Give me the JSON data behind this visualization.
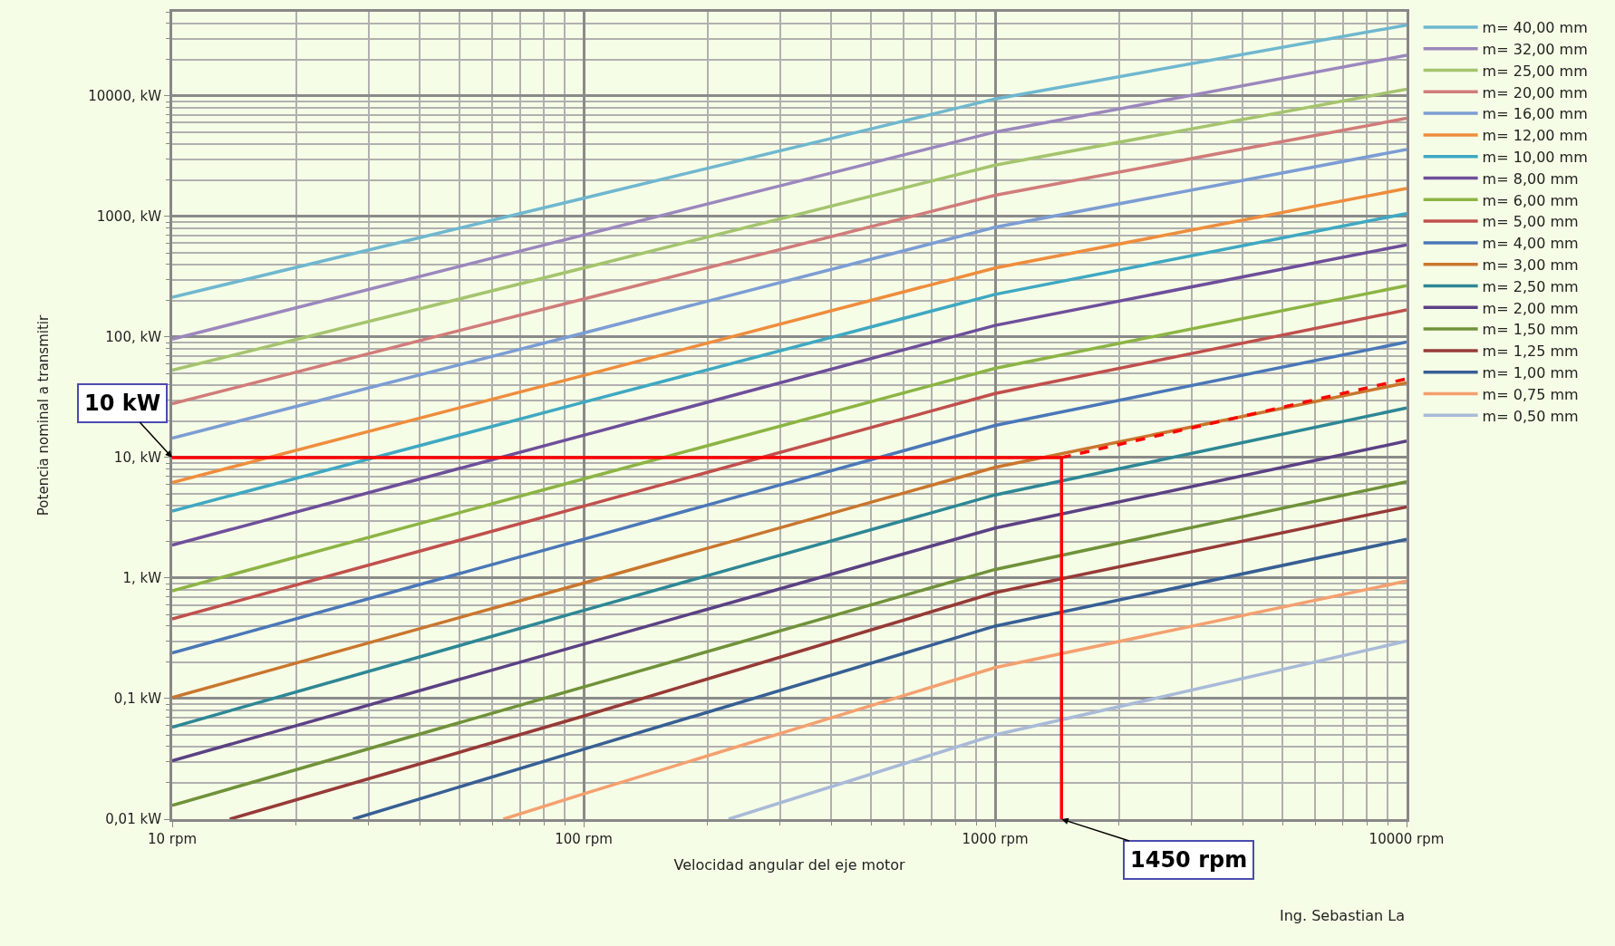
{
  "chart_data": {
    "type": "line",
    "xlabel": "Velocidad angular del eje motor",
    "ylabel": "Potencia nominal a transmitir",
    "log": "xy",
    "grid": true,
    "legend": "top right",
    "line_style": "solid",
    "xlim": [
      10,
      10000
    ],
    "xticks": [
      {
        "value": 10,
        "label": "10 rpm"
      },
      {
        "value": 100,
        "label": "100 rpm"
      },
      {
        "value": 1000,
        "label": "1000 rpm"
      },
      {
        "value": 10000,
        "label": "10000 rpm"
      }
    ],
    "ylim": [
      0.01,
      50000
    ],
    "yticks": [
      {
        "value": 0.01,
        "label": "0,01 kW"
      },
      {
        "value": 0.1,
        "label": "0,1 kW"
      },
      {
        "value": 1,
        "label": "1, kW"
      },
      {
        "value": 10,
        "label": "10, kW"
      },
      {
        "value": 100,
        "label": "100, kW"
      },
      {
        "value": 1000,
        "label": "1000, kW"
      },
      {
        "value": 10000,
        "label": "10000, kW"
      }
    ],
    "series": [
      {
        "name": "m= 40,00 mm",
        "color": "#6fb7cf",
        "x": [
          10,
          100,
          1000,
          10000
        ],
        "values": [
          214,
          1420,
          9460,
          38800
        ]
      },
      {
        "name": "m= 32,00 mm",
        "color": "#9b87bd",
        "x": [
          10,
          100,
          1000,
          10000
        ],
        "values": [
          96,
          703,
          5030,
          21800
        ]
      },
      {
        "name": "m= 25,00 mm",
        "color": "#a5c46e",
        "x": [
          10,
          100,
          1000,
          10000
        ],
        "values": [
          53,
          374,
          2670,
          11400
        ]
      },
      {
        "name": "m= 20,00 mm",
        "color": "#d07c7a",
        "x": [
          10,
          100,
          1000,
          10000
        ],
        "values": [
          28,
          207,
          1500,
          6530
        ]
      },
      {
        "name": "m= 16,00 mm",
        "color": "#7c9dd3",
        "x": [
          10,
          100,
          1000,
          10000
        ],
        "values": [
          14.5,
          108,
          815,
          3600
        ]
      },
      {
        "name": "m= 12,00 mm",
        "color": "#ee8d3d",
        "x": [
          10,
          100,
          1000,
          10000
        ],
        "values": [
          6.2,
          48,
          374,
          1710
        ]
      },
      {
        "name": "m= 10,00 mm",
        "color": "#3fa8c2",
        "x": [
          10,
          100,
          1000,
          10000
        ],
        "values": [
          3.6,
          28.8,
          226,
          1060
        ]
      },
      {
        "name": "m= 8,00 mm",
        "color": "#6e4f9a",
        "x": [
          10,
          100,
          1000,
          10000
        ],
        "values": [
          1.88,
          15.3,
          125,
          583
        ]
      },
      {
        "name": "m= 6,00 mm",
        "color": "#8cb444",
        "x": [
          10,
          100,
          1000,
          10000
        ],
        "values": [
          0.785,
          6.65,
          55,
          267
        ]
      },
      {
        "name": "m= 5,00 mm",
        "color": "#c0504d",
        "x": [
          10,
          100,
          1000,
          10000
        ],
        "values": [
          0.458,
          3.95,
          34,
          168
        ]
      },
      {
        "name": "m= 4,00 mm",
        "color": "#4a77b8",
        "x": [
          10,
          100,
          1000,
          10000
        ],
        "values": [
          0.239,
          2.1,
          18.5,
          91
        ]
      },
      {
        "name": "m= 3,00 mm",
        "color": "#c9762e",
        "x": [
          10,
          100,
          1000,
          10000
        ],
        "values": [
          0.102,
          0.91,
          8.3,
          41.8
        ]
      },
      {
        "name": "m= 2,50 mm",
        "color": "#2e8795",
        "x": [
          10,
          100,
          1000,
          10000
        ],
        "values": [
          0.058,
          0.54,
          4.9,
          25.8
        ]
      },
      {
        "name": "m= 2,00 mm",
        "color": "#5b4184",
        "x": [
          10,
          100,
          1000,
          10000
        ],
        "values": [
          0.0305,
          0.283,
          2.6,
          13.7
        ]
      },
      {
        "name": "m= 1,50 mm",
        "color": "#70923a",
        "x": [
          10,
          100,
          1000,
          10000
        ],
        "values": [
          0.013,
          0.125,
          1.18,
          6.3
        ]
      },
      {
        "name": "m= 1,25 mm",
        "color": "#963a37",
        "x": [
          13.8,
          100,
          1000,
          10000
        ],
        "values": [
          0.01,
          0.0716,
          0.757,
          3.9
        ]
      },
      {
        "name": "m= 1,00 mm",
        "color": "#375f94",
        "x": [
          27.5,
          100,
          1000,
          10000
        ],
        "values": [
          0.01,
          0.038,
          0.4,
          2.1
        ]
      },
      {
        "name": "m= 0,75 mm",
        "color": "#f4a070",
        "x": [
          63.8,
          100,
          1000,
          10000
        ],
        "values": [
          0.01,
          0.0162,
          0.181,
          0.946
        ]
      },
      {
        "name": "m= 0,50 mm",
        "color": "#a9bad8",
        "x": [
          225,
          1000,
          10000
        ],
        "values": [
          0.01,
          0.05,
          0.3
        ]
      },
      {
        "color": "#ff0000",
        "x": [
          10,
          1450
        ],
        "values": [
          10,
          10
        ]
      },
      {
        "color": "#ff0000",
        "x": [
          1450,
          1450
        ],
        "values": [
          0.01,
          10
        ]
      },
      {
        "color": "#ff0000",
        "x": [
          1450,
          10000
        ],
        "values": [
          10,
          45
        ],
        "line_style": "dashed"
      }
    ],
    "annotations": [
      {
        "text": "10 kW",
        "x": 10,
        "y": 10
      },
      {
        "text": "1450 rpm",
        "x": 1450,
        "y": 0.01
      },
      "Ing. Sebastian La"
    ]
  }
}
